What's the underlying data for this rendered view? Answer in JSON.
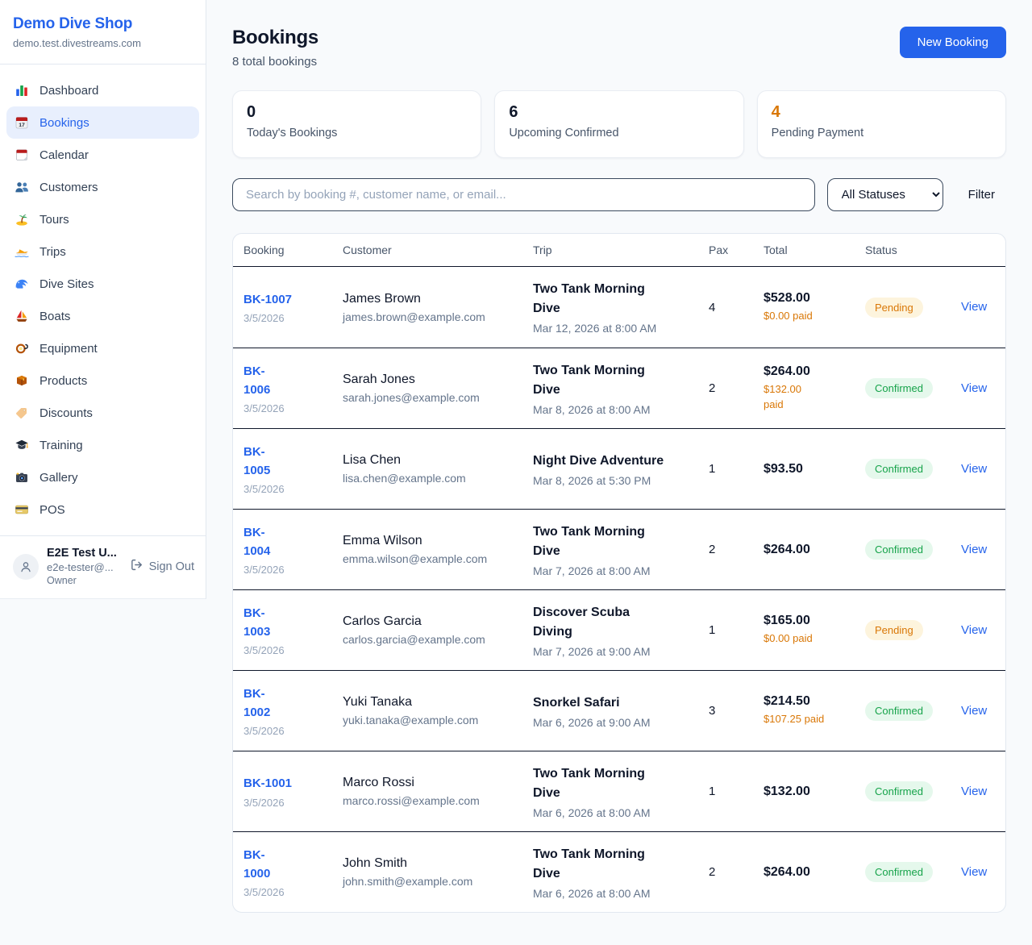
{
  "sidebar": {
    "brand": {
      "name": "Demo Dive Shop",
      "domain": "demo.test.divestreams.com"
    },
    "items": [
      {
        "label": "Dashboard",
        "icon": "bar-chart",
        "active": false
      },
      {
        "label": "Bookings",
        "icon": "calendar-date",
        "active": true
      },
      {
        "label": "Calendar",
        "icon": "calendar",
        "active": false
      },
      {
        "label": "Customers",
        "icon": "users",
        "active": false
      },
      {
        "label": "Tours",
        "icon": "island",
        "active": false
      },
      {
        "label": "Trips",
        "icon": "speedboat",
        "active": false
      },
      {
        "label": "Dive Sites",
        "icon": "wave",
        "active": false
      },
      {
        "label": "Boats",
        "icon": "sailboat",
        "active": false
      },
      {
        "label": "Equipment",
        "icon": "diving-mask",
        "active": false
      },
      {
        "label": "Products",
        "icon": "package",
        "active": false
      },
      {
        "label": "Discounts",
        "icon": "tag",
        "active": false
      },
      {
        "label": "Training",
        "icon": "graduation-cap",
        "active": false
      },
      {
        "label": "Gallery",
        "icon": "camera",
        "active": false
      },
      {
        "label": "POS",
        "icon": "credit-card",
        "active": false
      }
    ],
    "user": {
      "name": "E2E Test U...",
      "email": "e2e-tester@...",
      "role": "Owner",
      "sign_out_label": "Sign Out"
    }
  },
  "header": {
    "title": "Bookings",
    "subtitle": "8 total bookings",
    "new_booking_label": "New Booking"
  },
  "stats": [
    {
      "value": "0",
      "label": "Today's Bookings",
      "color": "#0f172a"
    },
    {
      "value": "6",
      "label": "Upcoming Confirmed",
      "color": "#0f172a"
    },
    {
      "value": "4",
      "label": "Pending Payment",
      "color": "#d97706"
    }
  ],
  "filters": {
    "search_placeholder": "Search by booking #, customer name, or email...",
    "status_selected": "All Statuses",
    "filter_label": "Filter"
  },
  "table": {
    "columns": [
      "Booking",
      "Customer",
      "Trip",
      "Pax",
      "Total",
      "Status"
    ],
    "view_label": "View",
    "rows": [
      {
        "id": "BK-1007",
        "id_wrap": false,
        "date": "3/5/2026",
        "customer": "James Brown",
        "email": "james.brown@example.com",
        "trip": "Two Tank Morning Dive",
        "trip_date": "Mar 12, 2026 at 8:00 AM",
        "pax": "4",
        "total": "$528.00",
        "paid": "$0.00 paid",
        "paid_wrap": false,
        "status": "Pending"
      },
      {
        "id": "BK-1006",
        "id_wrap": true,
        "date": "3/5/2026",
        "customer": "Sarah Jones",
        "email": "sarah.jones@example.com",
        "trip": "Two Tank Morning Dive",
        "trip_date": "Mar 8, 2026 at 8:00 AM",
        "pax": "2",
        "total": "$264.00",
        "paid": "$132.00 paid",
        "paid_wrap": true,
        "status": "Confirmed"
      },
      {
        "id": "BK-1005",
        "id_wrap": true,
        "date": "3/5/2026",
        "customer": "Lisa Chen",
        "email": "lisa.chen@example.com",
        "trip": "Night Dive Adventure",
        "trip_date": "Mar 8, 2026 at 5:30 PM",
        "pax": "1",
        "total": "$93.50",
        "paid": "",
        "paid_wrap": false,
        "status": "Confirmed"
      },
      {
        "id": "BK-1004",
        "id_wrap": true,
        "date": "3/5/2026",
        "customer": "Emma Wilson",
        "email": "emma.wilson@example.com",
        "trip": "Two Tank Morning Dive",
        "trip_date": "Mar 7, 2026 at 8:00 AM",
        "pax": "2",
        "total": "$264.00",
        "paid": "",
        "paid_wrap": false,
        "status": "Confirmed"
      },
      {
        "id": "BK-1003",
        "id_wrap": true,
        "date": "3/5/2026",
        "customer": "Carlos Garcia",
        "email": "carlos.garcia@example.com",
        "trip": "Discover Scuba Diving",
        "trip_date": "Mar 7, 2026 at 9:00 AM",
        "pax": "1",
        "total": "$165.00",
        "paid": "$0.00 paid",
        "paid_wrap": false,
        "status": "Pending"
      },
      {
        "id": "BK-1002",
        "id_wrap": true,
        "date": "3/5/2026",
        "customer": "Yuki Tanaka",
        "email": "yuki.tanaka@example.com",
        "trip": "Snorkel Safari",
        "trip_date": "Mar 6, 2026 at 9:00 AM",
        "pax": "3",
        "total": "$214.50",
        "paid": "$107.25 paid",
        "paid_wrap": false,
        "status": "Confirmed"
      },
      {
        "id": "BK-1001",
        "id_wrap": false,
        "date": "3/5/2026",
        "customer": "Marco Rossi",
        "email": "marco.rossi@example.com",
        "trip": "Two Tank Morning Dive",
        "trip_date": "Mar 6, 2026 at 8:00 AM",
        "pax": "1",
        "total": "$132.00",
        "paid": "",
        "paid_wrap": false,
        "status": "Confirmed"
      },
      {
        "id": "BK-1000",
        "id_wrap": true,
        "date": "3/5/2026",
        "customer": "John Smith",
        "email": "john.smith@example.com",
        "trip": "Two Tank Morning Dive",
        "trip_date": "Mar 6, 2026 at 8:00 AM",
        "pax": "2",
        "total": "$264.00",
        "paid": "",
        "paid_wrap": false,
        "status": "Confirmed"
      }
    ]
  },
  "colors": {
    "accent": "#2563eb",
    "pending_text": "#d97706",
    "pending_bg": "#fdf4dd",
    "confirmed_text": "#16a34a",
    "confirmed_bg": "#e5f8ec",
    "page_bg": "#f8fafc"
  }
}
